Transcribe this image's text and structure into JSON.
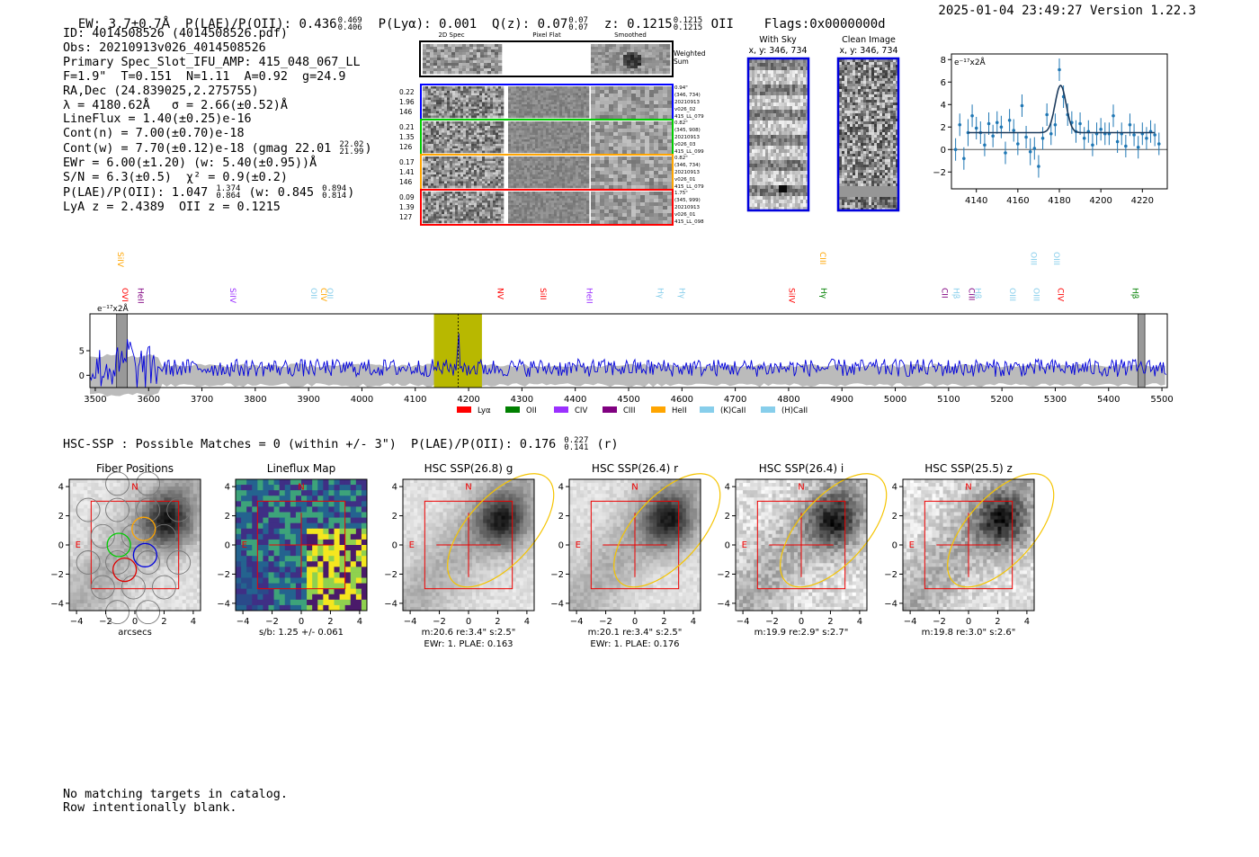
{
  "header": {
    "left": "EW: 3.7±0.7Å  P(LAE)/P(OII): 0.436 0.469/0.406  P(Lyα): 0.001  Q(z): 0.07 0.07/0.07  z: 0.1215 0.1215/0.1215 OII   Flags:0x0000000d",
    "ew": "EW: 3.7±0.7",
    "plae": "0.436",
    "plae_hi": "0.469",
    "plae_lo": "0.406",
    "plya": "P(Lyα): 0.001",
    "qz": "0.07",
    "qz_hi": "0.07",
    "qz_lo": "0.07",
    "z": "0.1215",
    "z_hi": "0.1215",
    "z_lo": "0.1215",
    "z_line": "OII",
    "flags": "Flags:0x0000000d",
    "timestamp": "2025-01-04 23:49:27",
    "version": "Version 1.22.3"
  },
  "info": {
    "id": "ID: 4014508526 (4014508526.pdf)",
    "obs": "Obs: 20210913v026_4014508526",
    "primary": "Primary Spec_Slot_IFU_AMP: 415_048_067_LL",
    "fit": "F=1.9\"  T=0.151  N=1.11  A=0.92  g=24.9",
    "radec": "RA,Dec (24.839025,2.275755)",
    "lambda": "λ = 4180.62Å   σ = 2.66(±0.52)Å",
    "lineflux": "LineFlux = 1.40(±0.25)e-16",
    "contn": "Cont(n) = 7.00(±0.70)e-18",
    "contw": "Cont(w) = 7.70(±0.12)e-18 (gmag 22.01",
    "gmag_hi": "22.02",
    "gmag_lo": "21.99",
    "ewr": "EWr = 6.00(±1.20) (w: 5.40(±0.95))Å",
    "sn": "S/N = 6.3(±0.5)  χ² = 0.9(±0.2)",
    "plae_line": "P(LAE)/P(OII): 1.047",
    "plae_hi": "1.374",
    "plae_lo": "0.864",
    "plae_w": "(w: 0.845",
    "plae_w_hi": "0.894",
    "plae_w_lo": "0.814",
    "redshifts": "LyA z = 2.4389  OII z = 0.1215"
  },
  "cutouts": {
    "col_2d": "2D Spec",
    "col_flat": "Pixel Flat",
    "col_smooth": "Smoothed",
    "weighted": "Weighted",
    "sum": "Sum",
    "rows": [
      {
        "color": "#0000ff",
        "vals": [
          "0.22",
          "1.96",
          "146"
        ],
        "info": [
          "0.94\"",
          "(346, 734)",
          "20210913",
          "v026_02",
          "415_LL_079"
        ]
      },
      {
        "color": "#00cc00",
        "vals": [
          "0.21",
          "1.35",
          "126"
        ],
        "info": [
          "0.82\"",
          "(345, 908)",
          "20210913",
          "v026_03",
          "415_LL_099"
        ]
      },
      {
        "color": "#ffa500",
        "vals": [
          "0.17",
          "1.41",
          "146"
        ],
        "info": [
          "0.82\"",
          "(346, 734)",
          "20210913",
          "v026_01",
          "415_LL_079"
        ]
      },
      {
        "color": "#ff0000",
        "vals": [
          "0.09",
          "1.39",
          "127"
        ],
        "info": [
          "1.75\"",
          "(345, 999)",
          "20210913",
          "v026_01",
          "415_LL_098"
        ]
      }
    ]
  },
  "sky": {
    "with_sky": "With Sky",
    "with_sky_xy": "x, y: 346, 734",
    "clean": "Clean Image",
    "clean_xy": "x, y: 346, 734"
  },
  "chart_data": [
    {
      "type": "scatter",
      "name": "line-fit",
      "ylabel_unit": "e⁻¹⁷x2Å",
      "xlim": [
        4128,
        4232
      ],
      "ylim": [
        -3.5,
        8.5
      ],
      "xticks": [
        4140,
        4160,
        4180,
        4200,
        4220
      ],
      "yticks": [
        -2,
        0,
        2,
        4,
        6,
        8
      ],
      "x": [
        4130,
        4132,
        4134,
        4136,
        4138,
        4140,
        4142,
        4144,
        4146,
        4148,
        4150,
        4152,
        4154,
        4156,
        4158,
        4160,
        4162,
        4164,
        4166,
        4168,
        4170,
        4172,
        4174,
        4176,
        4178,
        4180,
        4182,
        4184,
        4186,
        4188,
        4190,
        4192,
        4194,
        4196,
        4198,
        4200,
        4202,
        4204,
        4206,
        4208,
        4210,
        4212,
        4214,
        4216,
        4218,
        4220,
        4222,
        4224,
        4226,
        4228
      ],
      "y": [
        0.0,
        2.2,
        -0.8,
        1.5,
        3.0,
        1.9,
        1.5,
        0.4,
        2.3,
        1.2,
        2.4,
        2.0,
        -0.3,
        2.6,
        1.7,
        0.5,
        3.9,
        1.1,
        -0.2,
        0.1,
        -1.5,
        1.0,
        3.1,
        1.4,
        2.2,
        7.1,
        4.7,
        3.1,
        2.4,
        1.6,
        2.3,
        1.0,
        1.6,
        0.4,
        1.4,
        1.8,
        1.4,
        1.4,
        3.0,
        0.7,
        1.4,
        0.3,
        2.2,
        1.3,
        0.2,
        1.4,
        1.0,
        1.6,
        1.3,
        0.5
      ],
      "err": [
        1.0,
        1.0,
        1.0,
        1.2,
        1.0,
        1.0,
        1.0,
        1.0,
        1.0,
        1.0,
        1.0,
        1.0,
        1.0,
        1.0,
        1.0,
        1.0,
        1.0,
        1.0,
        1.2,
        1.0,
        1.0,
        1.0,
        1.0,
        1.0,
        1.0,
        1.0,
        1.0,
        1.0,
        1.0,
        1.0,
        1.0,
        1.0,
        1.0,
        1.0,
        1.0,
        1.0,
        1.0,
        1.0,
        1.0,
        1.0,
        1.0,
        1.0,
        1.0,
        1.0,
        1.0,
        1.0,
        1.0,
        1.0,
        1.0,
        1.0
      ],
      "fit": {
        "continuum": 1.5,
        "amplitude": 4.2,
        "center": 4180.6,
        "sigma": 2.66
      }
    },
    {
      "type": "line",
      "name": "full-spectrum",
      "ylabel_unit": "e⁻¹⁷x2Å",
      "xlim": [
        3490,
        5510
      ],
      "ylim": [
        -2.5,
        12.5
      ],
      "xticks": [
        3500,
        3600,
        3700,
        3800,
        3900,
        4000,
        4100,
        4200,
        4300,
        4400,
        4500,
        4600,
        4700,
        4800,
        4900,
        5000,
        5100,
        5200,
        5300,
        5400,
        5500
      ],
      "yticks": [
        0,
        5
      ],
      "highlight_range": [
        4135,
        4225
      ],
      "line_marker": 4180.6,
      "masked_ranges": [
        [
          3540,
          3560
        ],
        [
          5455,
          5468
        ]
      ],
      "legend": [
        {
          "label": "Lyα",
          "color": "#ff0000"
        },
        {
          "label": "OII",
          "color": "#008000"
        },
        {
          "label": "CIV",
          "color": "#9b30ff"
        },
        {
          "label": "CIII",
          "color": "#800080"
        },
        {
          "label": "HeII",
          "color": "#ffa500"
        },
        {
          "label": "(K)CaII",
          "color": "#87ceeb"
        },
        {
          "label": "(H)CaII",
          "color": "#87ceeb"
        }
      ],
      "line_labels": [
        {
          "label": "SiIV",
          "x": 3547,
          "color": "#ffa500",
          "row": 0
        },
        {
          "label": "OVI",
          "x": 3556,
          "color": "#ff0000",
          "row": 1
        },
        {
          "label": "HeII",
          "x": 3585,
          "color": "#800080",
          "row": 1
        },
        {
          "label": "SiIV",
          "x": 3758,
          "color": "#9b30ff",
          "row": 1
        },
        {
          "label": "OII",
          "x": 3910,
          "color": "#87ceeb",
          "row": 1
        },
        {
          "label": "CIV",
          "x": 3928,
          "color": "#ffa500",
          "row": 1
        },
        {
          "label": "OII",
          "x": 3940,
          "color": "#87ceeb",
          "row": 1
        },
        {
          "label": "NV",
          "x": 4260,
          "color": "#ff0000",
          "row": 1
        },
        {
          "label": "SiII",
          "x": 4340,
          "color": "#ff0000",
          "row": 1
        },
        {
          "label": "HeII",
          "x": 4427,
          "color": "#9b30ff",
          "row": 1
        },
        {
          "label": "Hγ",
          "x": 4560,
          "color": "#87ceeb",
          "row": 1
        },
        {
          "label": "Hγ",
          "x": 4600,
          "color": "#87ceeb",
          "row": 1
        },
        {
          "label": "SiIV",
          "x": 4806,
          "color": "#ff0000",
          "row": 1
        },
        {
          "label": "CIII",
          "x": 4864,
          "color": "#ffa500",
          "row": 0
        },
        {
          "label": "Hγ",
          "x": 4866,
          "color": "#008000",
          "row": 1
        },
        {
          "label": "CII",
          "x": 5093,
          "color": "#800080",
          "row": 1
        },
        {
          "label": "Hβ",
          "x": 5115,
          "color": "#87ceeb",
          "row": 1
        },
        {
          "label": "CIII",
          "x": 5143,
          "color": "#800080",
          "row": 1
        },
        {
          "label": "Hβ",
          "x": 5155,
          "color": "#87ceeb",
          "row": 1
        },
        {
          "label": "OIII",
          "x": 5220,
          "color": "#87ceeb",
          "row": 1
        },
        {
          "label": "OIII",
          "x": 5260,
          "color": "#87ceeb",
          "row": 0
        },
        {
          "label": "OIII",
          "x": 5265,
          "color": "#87ceeb",
          "row": 1
        },
        {
          "label": "OIII",
          "x": 5303,
          "color": "#87ceeb",
          "row": 0
        },
        {
          "label": "CIV",
          "x": 5310,
          "color": "#ff0000",
          "row": 1
        },
        {
          "label": "Hβ",
          "x": 5450,
          "color": "#008000",
          "row": 1
        }
      ]
    }
  ],
  "hsc": {
    "title": "HSC-SSP : Possible Matches = 0 (within +/- 3\")  P(LAE)/P(OII): 0.176",
    "plae_hi": "0.227",
    "plae_lo": "0.141",
    "band": "(r)",
    "axis_ticks": [
      "−4",
      "−2",
      "0",
      "2",
      "4"
    ],
    "north": "N",
    "east": "E",
    "panels": [
      {
        "title": "Fiber Positions",
        "cap1": "arcsecs",
        "cap2": ""
      },
      {
        "title": "Lineflux Map",
        "cap1": "s/b: 1.25 +/- 0.061",
        "cap2": ""
      },
      {
        "title": "HSC SSP(26.8) g",
        "cap1": "m:20.6  re:3.4\"  s:2.5\"",
        "cap2": "EWr: 1. PLAE: 0.163"
      },
      {
        "title": "HSC SSP(26.4) r",
        "cap1": "m:20.1  re:3.4\"  s:2.5\"",
        "cap2": "EWr: 1. PLAE: 0.176"
      },
      {
        "title": "HSC SSP(26.4) i",
        "cap1": "m:19.9  re:2.9\"  s:2.7\"",
        "cap2": ""
      },
      {
        "title": "HSC SSP(25.5) z",
        "cap1": "m:19.8  re:3.0\"  s:2.6\"",
        "cap2": ""
      }
    ]
  },
  "footer": {
    "line1": "No matching targets in catalog.",
    "line2": "Row intentionally blank."
  }
}
